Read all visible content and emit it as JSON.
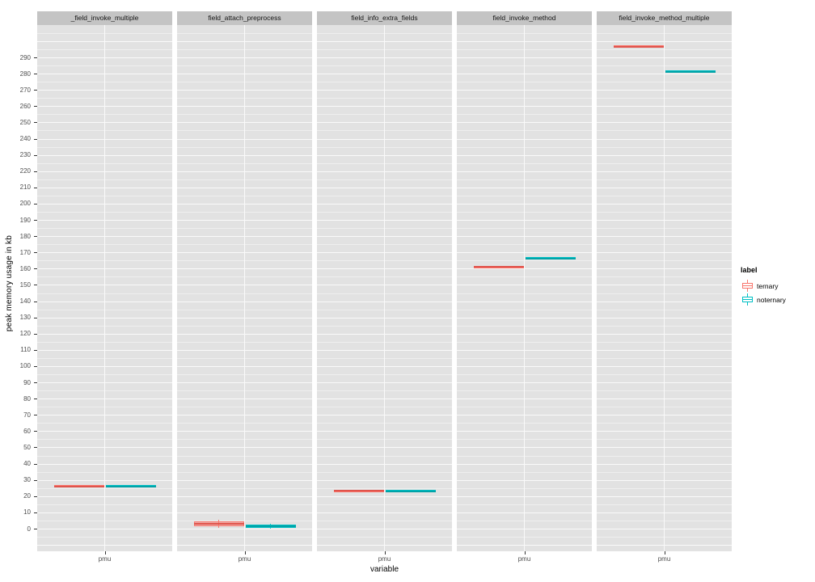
{
  "chart_data": {
    "type": "boxplot",
    "title": "",
    "xlabel": "variable",
    "ylabel": "peak memory usage in kb",
    "x_category": "pmu",
    "y_ticks": [
      0,
      10,
      20,
      30,
      40,
      50,
      60,
      70,
      80,
      90,
      100,
      110,
      120,
      130,
      140,
      150,
      160,
      170,
      180,
      190,
      200,
      210,
      220,
      230,
      240,
      250,
      260,
      270,
      280,
      290
    ],
    "ylim": [
      -14,
      310
    ],
    "grid": "major white, minor faint white, on gray panel",
    "legend": {
      "title": "label",
      "position": "right",
      "items": [
        {
          "label": "ternary",
          "color": "#F8766D"
        },
        {
          "label": "noternary",
          "color": "#00BFC4"
        }
      ]
    },
    "colors": {
      "ternary": "#F8766D",
      "ternary_median": "#E0544C",
      "noternary": "#00BFC4",
      "noternary_median": "#00A3A8",
      "panel_bg": "#E2E2E2",
      "strip_bg": "#C4C4C4",
      "grid_major": "#FAFAFA"
    },
    "facets": [
      {
        "title": "_field_invoke_multiple",
        "boxes": [
          {
            "label": "ternary",
            "lo": 25.5,
            "q1": 25.8,
            "median": 26.1,
            "q3": 26.5,
            "hi": 26.8
          },
          {
            "label": "noternary",
            "lo": 25.3,
            "q1": 25.6,
            "median": 25.9,
            "q3": 26.2,
            "hi": 26.5
          }
        ]
      },
      {
        "title": "field_attach_preprocess",
        "boxes": [
          {
            "label": "ternary",
            "lo": 0.5,
            "q1": 1.5,
            "median": 3.0,
            "q3": 4.5,
            "hi": 5.5
          },
          {
            "label": "noternary",
            "lo": 0.0,
            "q1": 0.5,
            "median": 1.3,
            "q3": 2.4,
            "hi": 3.0
          }
        ]
      },
      {
        "title": "field_info_extra_fields",
        "boxes": [
          {
            "label": "ternary",
            "lo": 22.8,
            "q1": 23.0,
            "median": 23.2,
            "q3": 23.4,
            "hi": 23.6
          },
          {
            "label": "noternary",
            "lo": 22.6,
            "q1": 22.8,
            "median": 23.0,
            "q3": 23.2,
            "hi": 23.4
          }
        ]
      },
      {
        "title": "field_invoke_method",
        "boxes": [
          {
            "label": "ternary",
            "lo": 160.5,
            "q1": 160.7,
            "median": 161.0,
            "q3": 161.3,
            "hi": 161.5
          },
          {
            "label": "noternary",
            "lo": 165.7,
            "q1": 165.9,
            "median": 166.2,
            "q3": 166.5,
            "hi": 166.7
          }
        ]
      },
      {
        "title": "field_invoke_method_multiple",
        "boxes": [
          {
            "label": "ternary",
            "lo": 296.2,
            "q1": 296.4,
            "median": 296.7,
            "q3": 297.0,
            "hi": 297.2
          },
          {
            "label": "noternary",
            "lo": 280.8,
            "q1": 281.0,
            "median": 281.3,
            "q3": 281.6,
            "hi": 281.8
          }
        ]
      }
    ]
  }
}
